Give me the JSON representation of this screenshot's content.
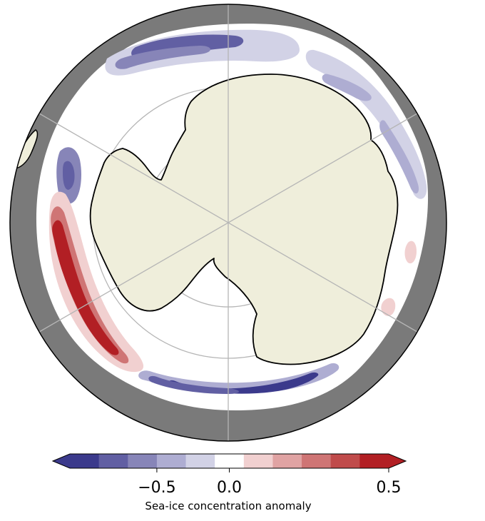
{
  "colorbar": {
    "label": "Sea-ice concentration anomaly",
    "ticks": [
      {
        "value": -0.5,
        "label": "−0.5"
      },
      {
        "value": 0.0,
        "label": "0.0"
      },
      {
        "value": 0.5,
        "label": "0.5"
      }
    ],
    "range": [
      -0.8,
      0.8
    ],
    "extend": "both",
    "bins": [
      {
        "from": -0.8,
        "to": -0.7,
        "color": "#3b3a8c"
      },
      {
        "from": -0.7,
        "to": -0.6,
        "color": "#615fa3"
      },
      {
        "from": -0.6,
        "to": -0.5,
        "color": "#8785b8"
      },
      {
        "from": -0.5,
        "to": -0.4,
        "color": "#aeadd2"
      },
      {
        "from": -0.4,
        "to": -0.3,
        "color": "#d2d2e6"
      },
      {
        "from": -0.3,
        "to": 0.0,
        "color": "#ffffff"
      },
      {
        "from": 0.0,
        "to": 0.1,
        "color": "#f1d0d0"
      },
      {
        "from": 0.1,
        "to": 0.2,
        "color": "#e0a3a3"
      },
      {
        "from": 0.2,
        "to": 0.3,
        "color": "#cf7575"
      },
      {
        "from": 0.3,
        "to": 0.4,
        "color": "#c04b4b"
      },
      {
        "from": 0.4,
        "to": 0.5,
        "color": "#b21f24"
      }
    ],
    "under_color": "#3b3a8c",
    "over_color": "#b21f24"
  },
  "map": {
    "projection": "south-polar-stereographic",
    "ocean_mask_color": "#7a7a7a",
    "ocean_color": "#ffffff",
    "land_color": "#efeedb",
    "coastline_color": "#000000",
    "gridline_color": "#b5b5b5"
  }
}
